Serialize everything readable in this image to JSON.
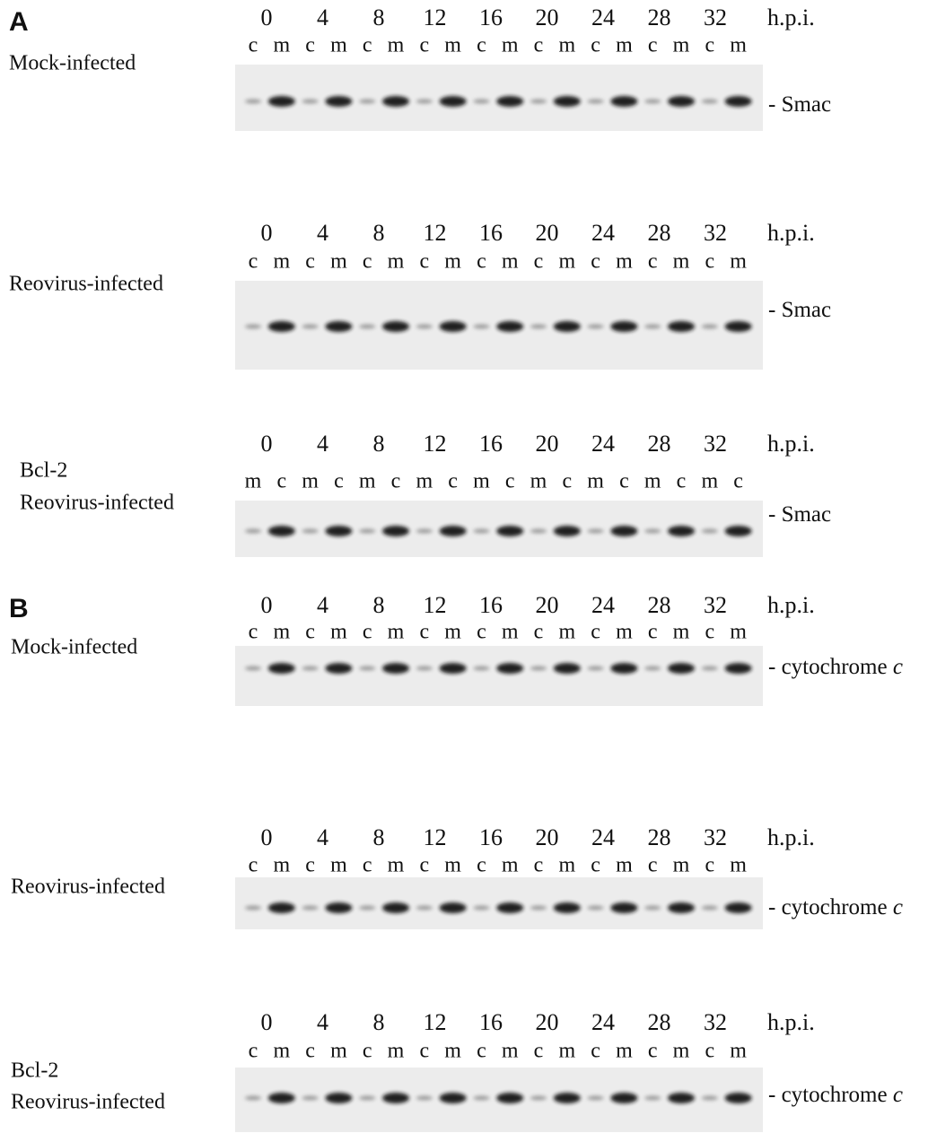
{
  "panels": [
    {
      "letter": "A",
      "blots": [
        {
          "label_lines": [
            "Mock-infected"
          ],
          "hours": [
            0,
            4,
            8,
            12,
            16,
            20,
            24,
            28,
            32
          ],
          "unit": "h.p.i.",
          "lanes": [
            "c",
            "m",
            "c",
            "m",
            "c",
            "m",
            "c",
            "m",
            "c",
            "m",
            "c",
            "m",
            "c",
            "m",
            "c",
            "m",
            "c",
            "m"
          ],
          "band_label": "- Smac"
        },
        {
          "label_lines": [
            "Reovirus-infected"
          ],
          "hours": [
            0,
            4,
            8,
            12,
            16,
            20,
            24,
            28,
            32
          ],
          "unit": "h.p.i.",
          "lanes": [
            "c",
            "m",
            "c",
            "m",
            "c",
            "m",
            "c",
            "m",
            "c",
            "m",
            "c",
            "m",
            "c",
            "m",
            "c",
            "m",
            "c",
            "m"
          ],
          "band_label": "- Smac"
        },
        {
          "label_lines": [
            "Bcl-2",
            "Reovirus-infected"
          ],
          "hours": [
            0,
            4,
            8,
            12,
            16,
            20,
            24,
            28,
            32
          ],
          "unit": "h.p.i.",
          "lanes": [
            "m",
            "c",
            "m",
            "c",
            "m",
            "c",
            "m",
            "c",
            "m",
            "c",
            "m",
            "c",
            "m",
            "c",
            "m",
            "c",
            "m",
            "c"
          ],
          "band_label": "- Smac"
        }
      ]
    },
    {
      "letter": "B",
      "blots": [
        {
          "label_lines": [
            "Mock-infected"
          ],
          "hours": [
            0,
            4,
            8,
            12,
            16,
            20,
            24,
            28,
            32
          ],
          "unit": "h.p.i.",
          "lanes": [
            "c",
            "m",
            "c",
            "m",
            "c",
            "m",
            "c",
            "m",
            "c",
            "m",
            "c",
            "m",
            "c",
            "m",
            "c",
            "m",
            "c",
            "m"
          ],
          "band_label": "- cytochrome",
          "band_label_italic": "c"
        },
        {
          "label_lines": [
            "Reovirus-infected"
          ],
          "hours": [
            0,
            4,
            8,
            12,
            16,
            20,
            24,
            28,
            32
          ],
          "unit": "h.p.i.",
          "lanes": [
            "c",
            "m",
            "c",
            "m",
            "c",
            "m",
            "c",
            "m",
            "c",
            "m",
            "c",
            "m",
            "c",
            "m",
            "c",
            "m",
            "c",
            "m"
          ],
          "band_label": "- cytochrome",
          "band_label_italic": "c"
        },
        {
          "label_lines": [
            "Bcl-2",
            "Reovirus-infected"
          ],
          "hours": [
            0,
            4,
            8,
            12,
            16,
            20,
            24,
            28,
            32
          ],
          "unit": "h.p.i.",
          "lanes": [
            "c",
            "m",
            "c",
            "m",
            "c",
            "m",
            "c",
            "m",
            "c",
            "m",
            "c",
            "m",
            "c",
            "m",
            "c",
            "m",
            "c",
            "m"
          ],
          "band_label": "- cytochrome",
          "band_label_italic": "c"
        }
      ]
    }
  ]
}
